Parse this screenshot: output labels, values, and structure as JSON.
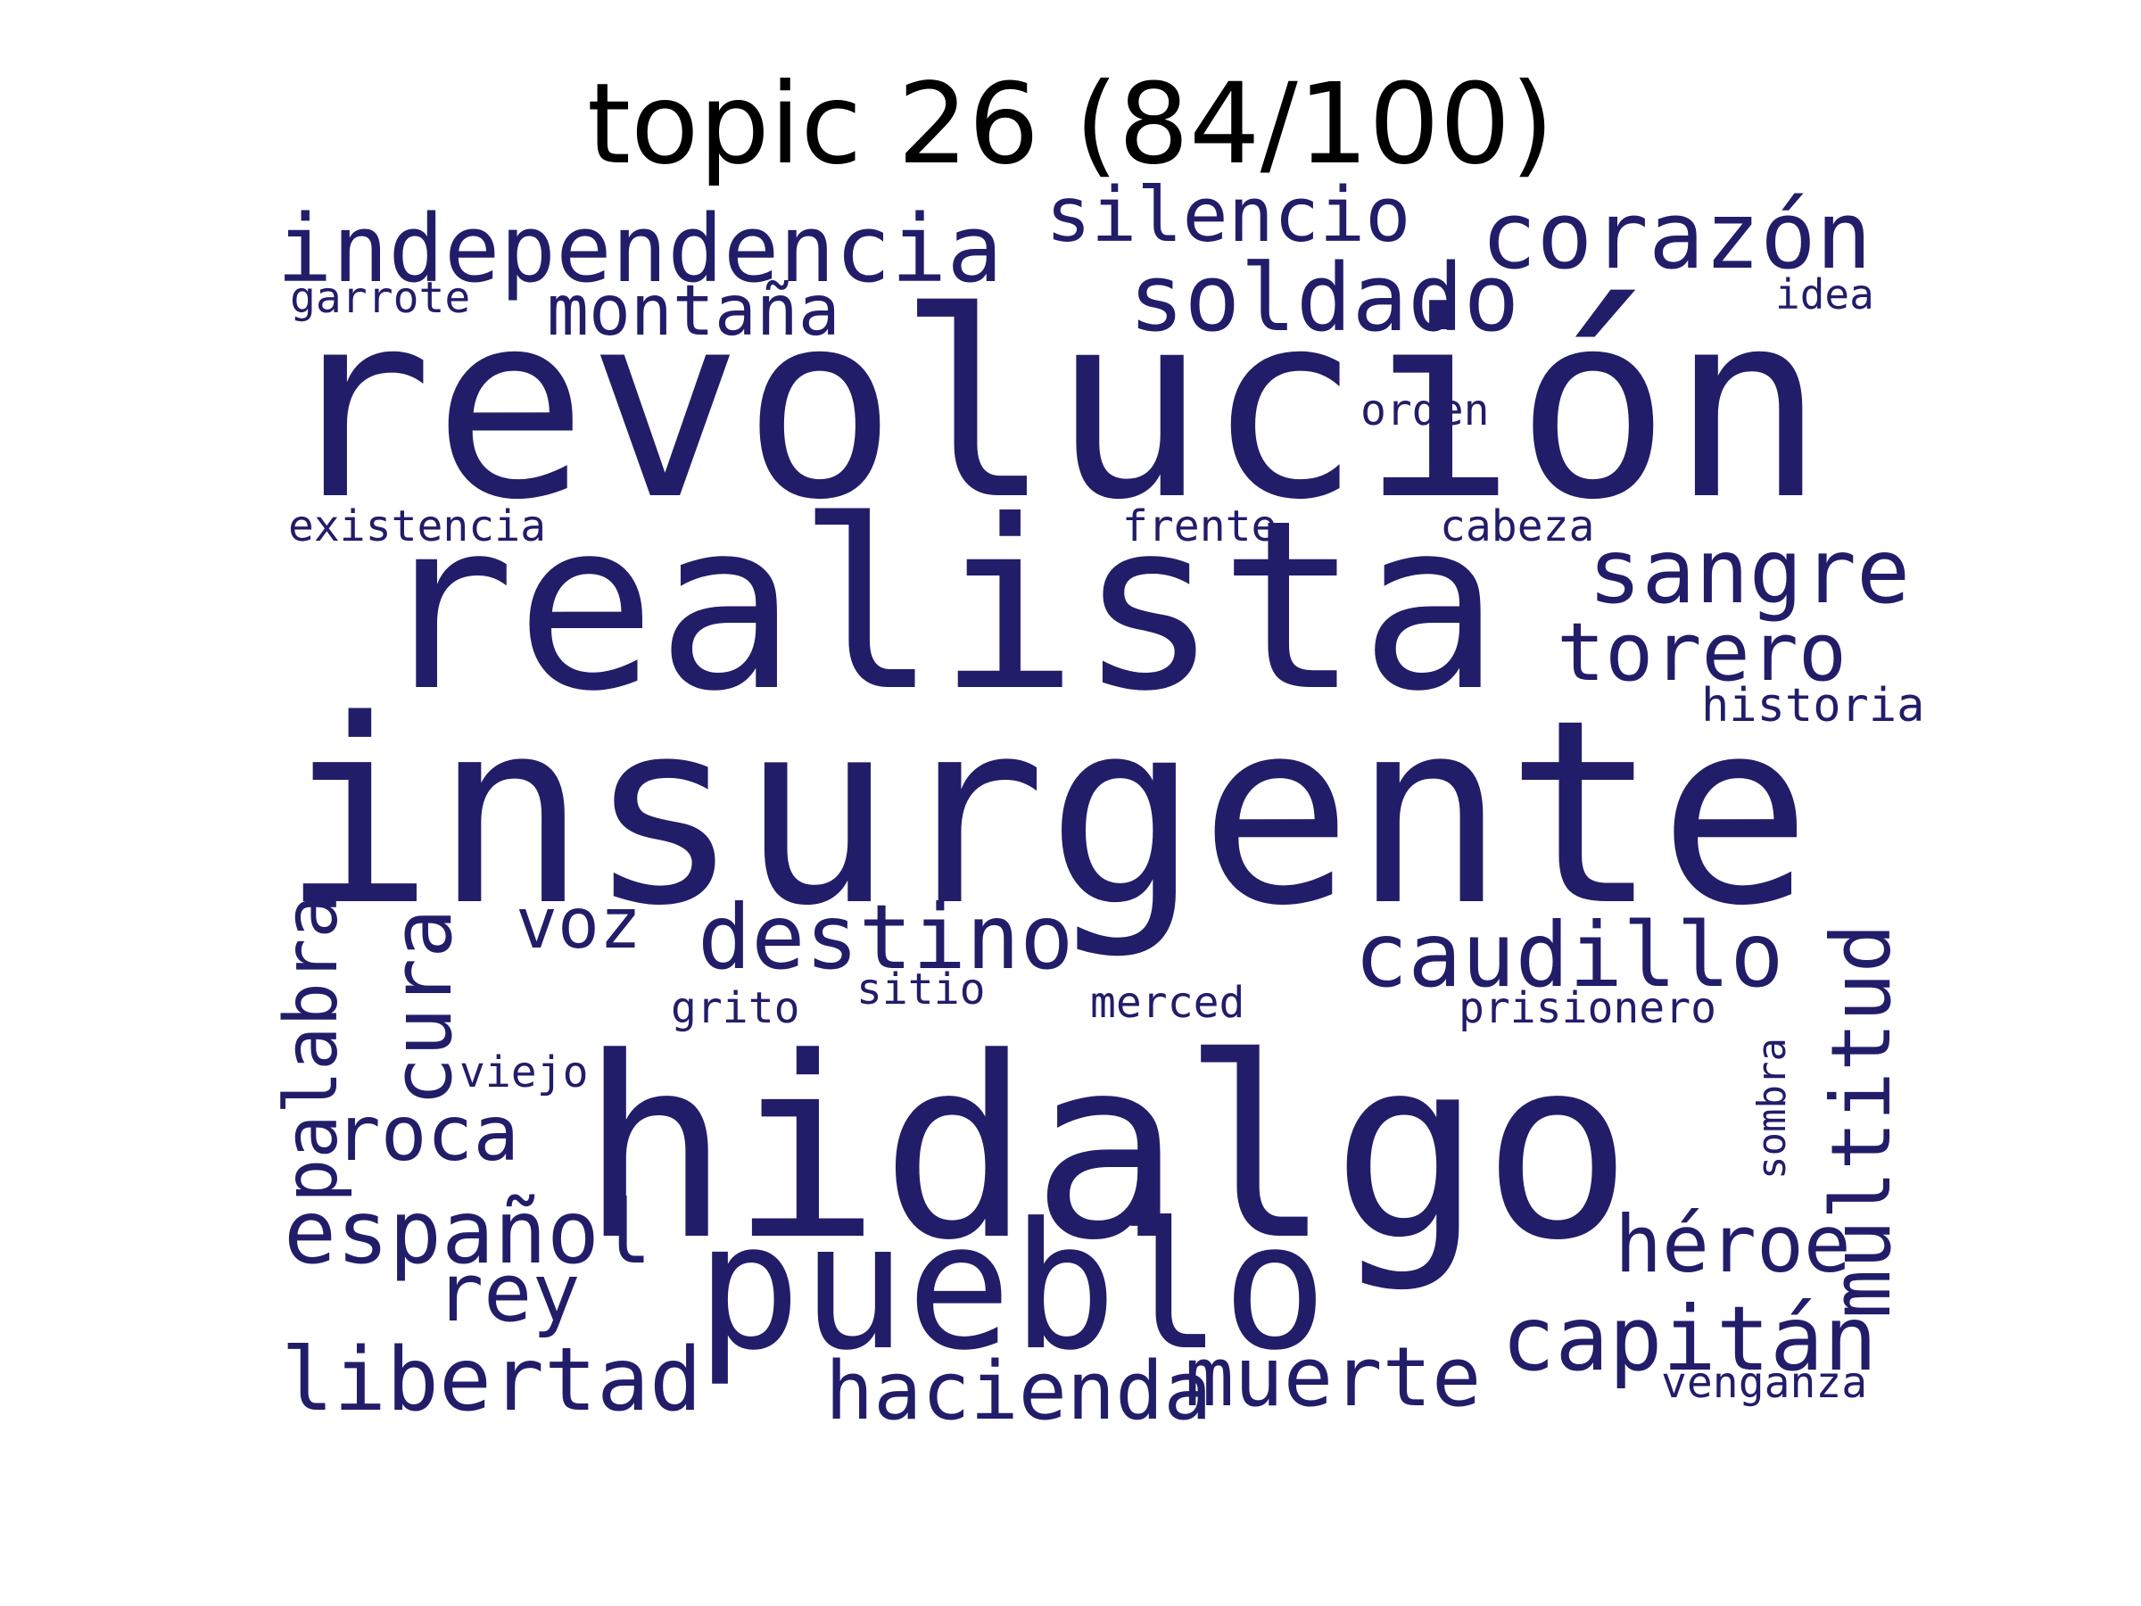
{
  "title": "topic 26 (84/100)",
  "word_color": "#221d69",
  "words": [
    {
      "text": "revolución",
      "weight": 1.0
    },
    {
      "text": "insurgente",
      "weight": 0.98
    },
    {
      "text": "hidalgo",
      "weight": 0.97
    },
    {
      "text": "realista",
      "weight": 0.9
    },
    {
      "text": "pueblo",
      "weight": 0.68
    },
    {
      "text": "independencia",
      "weight": 0.36
    },
    {
      "text": "corazón",
      "weight": 0.36
    },
    {
      "text": "soldado",
      "weight": 0.36
    },
    {
      "text": "sangre",
      "weight": 0.35
    },
    {
      "text": "destino",
      "weight": 0.35
    },
    {
      "text": "caudillo",
      "weight": 0.35
    },
    {
      "text": "multitud",
      "weight": 0.34
    },
    {
      "text": "capitán",
      "weight": 0.34
    },
    {
      "text": "libertad",
      "weight": 0.34
    },
    {
      "text": "español",
      "weight": 0.34
    },
    {
      "text": "cura",
      "weight": 0.32
    },
    {
      "text": "muerte",
      "weight": 0.32
    },
    {
      "text": "hacienda",
      "weight": 0.31
    },
    {
      "text": "torero",
      "weight": 0.31
    },
    {
      "text": "rey",
      "weight": 0.31
    },
    {
      "text": "palabra",
      "weight": 0.3
    },
    {
      "text": "héroe",
      "weight": 0.3
    },
    {
      "text": "roca",
      "weight": 0.3
    },
    {
      "text": "silencio",
      "weight": 0.29
    },
    {
      "text": "montaña",
      "weight": 0.27
    },
    {
      "text": "voz",
      "weight": 0.27
    },
    {
      "text": "historia",
      "weight": 0.17
    },
    {
      "text": "existencia",
      "weight": 0.17
    },
    {
      "text": "frente",
      "weight": 0.17
    },
    {
      "text": "cabeza",
      "weight": 0.17
    },
    {
      "text": "orden",
      "weight": 0.17
    },
    {
      "text": "garrote",
      "weight": 0.17
    },
    {
      "text": "idea",
      "weight": 0.17
    },
    {
      "text": "grito",
      "weight": 0.17
    },
    {
      "text": "sitio",
      "weight": 0.17
    },
    {
      "text": "merced",
      "weight": 0.17
    },
    {
      "text": "prisionero",
      "weight": 0.17
    },
    {
      "text": "viejo",
      "weight": 0.17
    },
    {
      "text": "venganza",
      "weight": 0.17
    },
    {
      "text": "sombra",
      "weight": 0.15
    }
  ]
}
